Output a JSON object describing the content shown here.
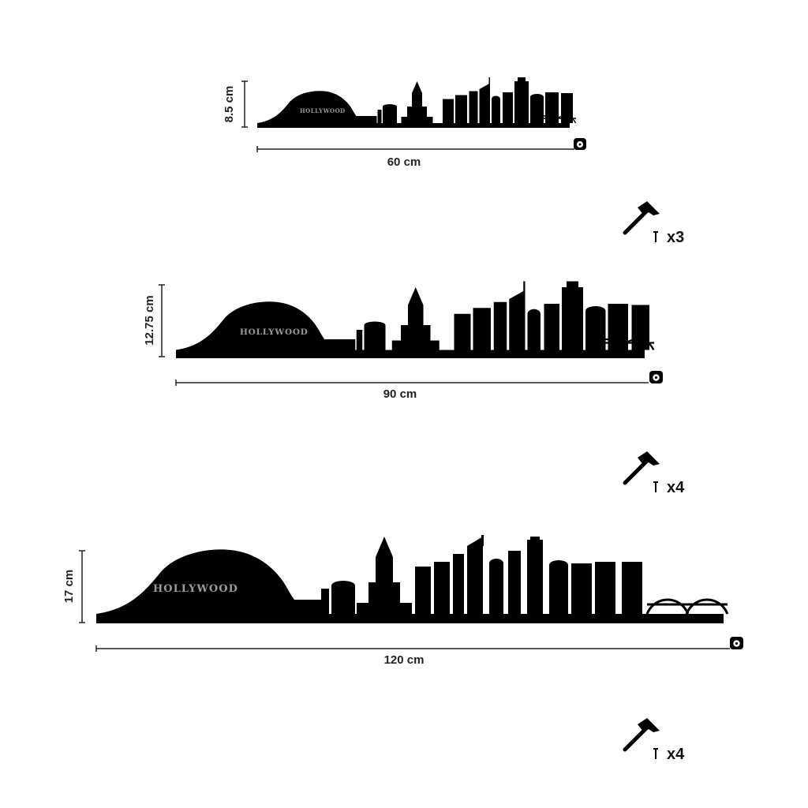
{
  "variants": [
    {
      "id": "small",
      "width_label": "60 cm",
      "height_label": "8.5 cm",
      "sign_text": "HOLLYWOOD",
      "nail_count_label": "x3"
    },
    {
      "id": "medium",
      "width_label": "90 cm",
      "height_label": "12.75 cm",
      "sign_text": "HOLLYWOOD",
      "nail_count_label": "x4"
    },
    {
      "id": "large",
      "width_label": "120 cm",
      "height_label": "17 cm",
      "sign_text": "HOLLYWOOD",
      "nail_count_label": "x4"
    }
  ],
  "icons": {
    "hammer": "hammer-icon",
    "nail": "nail-icon",
    "tape": "tape-measure-icon"
  },
  "colors": {
    "silhouette": "#000000",
    "dimension_line": "#222222",
    "sign_text": "#9a9a9a"
  }
}
